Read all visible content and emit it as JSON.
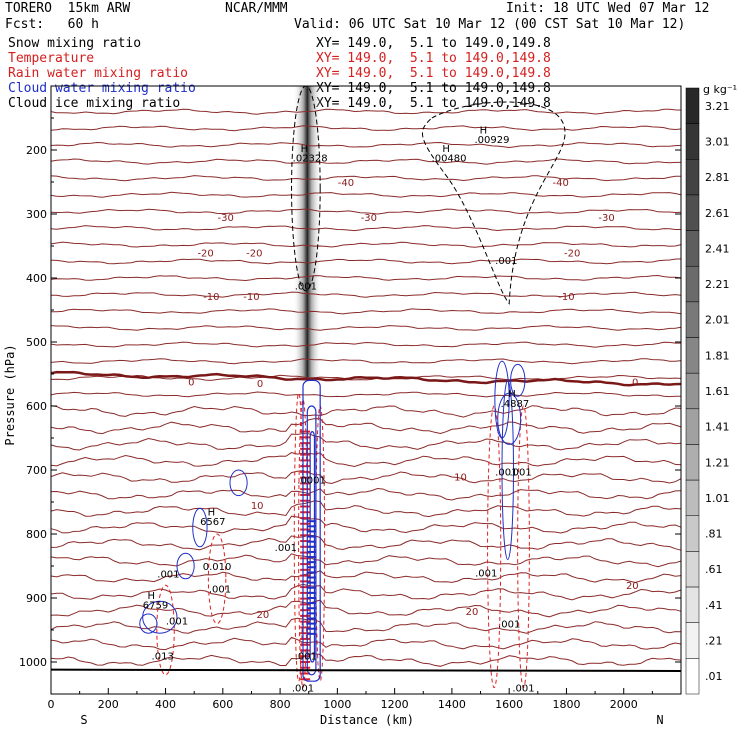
{
  "header": {
    "model": "TORERO  15km ARW",
    "center": "NCAR/MMM",
    "init": "Init: 18 UTC Wed 07 Mar 12",
    "fcst": "Fcst:   60 h",
    "valid": "Valid: 06 UTC Sat 10 Mar 12 (00 CST Sat 10 Mar 12)",
    "fields": [
      {
        "name": "Snow mixing ratio",
        "xy": "XY= 149.0,  5.1 to 149.0,149.8",
        "color": "#000000"
      },
      {
        "name": "Temperature",
        "xy": "XY= 149.0,  5.1 to 149.0,149.8",
        "color": "#d62020"
      },
      {
        "name": "Rain water mixing ratio",
        "xy": "XY= 149.0,  5.1 to 149.0,149.8",
        "color": "#d62020"
      },
      {
        "name": "Cloud water mixing ratio",
        "xy": "XY= 149.0,  5.1 to 149.0,149.8",
        "color": "#1f2fc8"
      },
      {
        "name": "Cloud ice mixing ratio",
        "xy": "XY= 149.0,  5.1 to 149.0,149.8",
        "color": "#000000"
      }
    ]
  },
  "chart_data": {
    "type": "heatmap",
    "title": "",
    "xlabel": "Distance (km)",
    "ylabel": "Pressure (hPa)",
    "xlim": [
      0,
      2200
    ],
    "ylim": [
      1050,
      100
    ],
    "xticks": [
      0,
      200,
      400,
      600,
      800,
      1000,
      1200,
      1400,
      1600,
      1800,
      2000
    ],
    "yticks": [
      200,
      300,
      400,
      500,
      600,
      700,
      800,
      900,
      1000
    ],
    "x_end_labels": {
      "left": "S",
      "right": "N"
    },
    "colorbar": {
      "unit": "g kg⁻¹",
      "labels": [
        "3.21",
        "3.01",
        "2.81",
        "2.61",
        "2.41",
        "2.21",
        "2.01",
        "1.81",
        "1.61",
        "1.41",
        "1.21",
        "1.01",
        ".81",
        ".61",
        ".41",
        ".21",
        ".01"
      ]
    },
    "temperature_isotherm_labels": [
      {
        "text": "-40",
        "x": 1030,
        "p": 250
      },
      {
        "text": "-40",
        "x": 1780,
        "p": 250
      },
      {
        "text": "-30",
        "x": 610,
        "p": 305
      },
      {
        "text": "-30",
        "x": 1110,
        "p": 305
      },
      {
        "text": "-30",
        "x": 1940,
        "p": 305
      },
      {
        "text": "-20",
        "x": 540,
        "p": 360
      },
      {
        "text": "-20",
        "x": 710,
        "p": 360
      },
      {
        "text": "-20",
        "x": 1820,
        "p": 360
      },
      {
        "text": "-10",
        "x": 560,
        "p": 428
      },
      {
        "text": "-10",
        "x": 700,
        "p": 428
      },
      {
        "text": "-10",
        "x": 1800,
        "p": 428
      },
      {
        "text": "0",
        "x": 490,
        "p": 562
      },
      {
        "text": "0",
        "x": 730,
        "p": 564
      },
      {
        "text": "0",
        "x": 2040,
        "p": 562
      },
      {
        "text": "10",
        "x": 720,
        "p": 755
      },
      {
        "text": "10",
        "x": 1430,
        "p": 710
      },
      {
        "text": "20",
        "x": 740,
        "p": 925
      },
      {
        "text": "20",
        "x": 1470,
        "p": 920
      },
      {
        "text": "20",
        "x": 2030,
        "p": 880
      }
    ],
    "field_labels": [
      {
        "text": "H",
        "x": 885,
        "p": 197
      },
      {
        "text": ".02328",
        "x": 905,
        "p": 212
      },
      {
        "text": ".001",
        "x": 890,
        "p": 412
      },
      {
        "text": "H",
        "x": 1380,
        "p": 197
      },
      {
        "text": ".00480",
        "x": 1390,
        "p": 212
      },
      {
        "text": "H",
        "x": 1510,
        "p": 168
      },
      {
        "text": ".00929",
        "x": 1540,
        "p": 183
      },
      {
        "text": ".001",
        "x": 1590,
        "p": 372
      },
      {
        "text": "H",
        "x": 1610,
        "p": 580
      },
      {
        "text": ".4887",
        "x": 1620,
        "p": 595
      },
      {
        "text": ".001",
        "x": 1590,
        "p": 702
      },
      {
        "text": ".001",
        "x": 1640,
        "p": 702
      },
      {
        "text": ".0001",
        "x": 910,
        "p": 715
      },
      {
        "text": "H",
        "x": 560,
        "p": 765
      },
      {
        "text": "6567",
        "x": 565,
        "p": 780
      },
      {
        "text": ".001",
        "x": 820,
        "p": 820
      },
      {
        "text": ".001",
        "x": 410,
        "p": 862
      },
      {
        "text": "0.010",
        "x": 580,
        "p": 850
      },
      {
        "text": ".001",
        "x": 590,
        "p": 885
      },
      {
        "text": "H",
        "x": 350,
        "p": 895
      },
      {
        "text": "6759",
        "x": 365,
        "p": 910
      },
      {
        "text": ".001",
        "x": 440,
        "p": 935
      },
      {
        "text": ".013",
        "x": 390,
        "p": 990
      },
      {
        "text": ".001",
        "x": 1520,
        "p": 860
      },
      {
        "text": ".001",
        "x": 1600,
        "p": 940
      },
      {
        "text": ".001",
        "x": 890,
        "p": 990
      },
      {
        "text": ".001",
        "x": 880,
        "p": 1040
      },
      {
        "text": ".001",
        "x": 1650,
        "p": 1040
      }
    ]
  }
}
